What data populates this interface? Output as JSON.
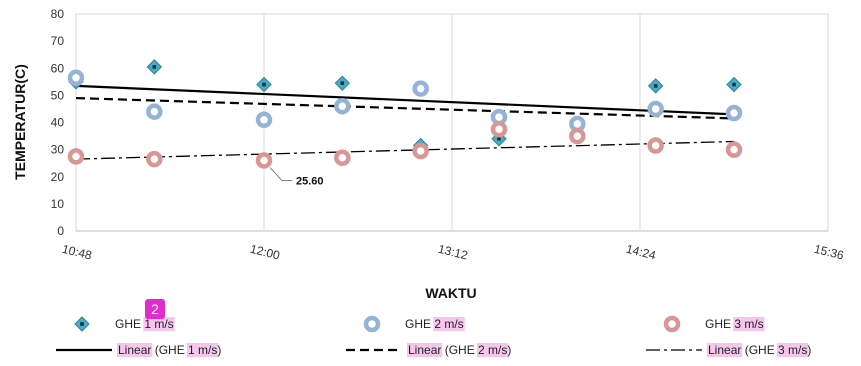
{
  "chart_data": {
    "type": "scatter",
    "xlabel": "WAKTU",
    "ylabel": "TEMPERATUR(C)",
    "ylim": [
      0,
      80
    ],
    "y_ticks": [
      0,
      10,
      20,
      30,
      40,
      50,
      60,
      70,
      80
    ],
    "x_ticks": [
      "10:48",
      "12:00",
      "13:12",
      "14:24",
      "15:36"
    ],
    "xlim": [
      "10:48",
      "15:36"
    ],
    "grid": {
      "vertical": true,
      "horizontal": false
    },
    "legend_position": "bottom",
    "series": [
      {
        "name": "GHE 1 m/s",
        "marker": "diamond",
        "color": "#4bacc6",
        "points": [
          {
            "x": "10:48",
            "y": 55
          },
          {
            "x": "11:18",
            "y": 60.5
          },
          {
            "x": "12:00",
            "y": 54
          },
          {
            "x": "12:30",
            "y": 54.5
          },
          {
            "x": "13:00",
            "y": 31.5
          },
          {
            "x": "13:30",
            "y": 34
          },
          {
            "x": "14:00",
            "y": 39
          },
          {
            "x": "14:30",
            "y": 53.5
          },
          {
            "x": "15:00",
            "y": 54
          }
        ]
      },
      {
        "name": "GHE 2 m/s",
        "marker": "circle",
        "color": "#95b3d7",
        "points": [
          {
            "x": "10:48",
            "y": 56.5
          },
          {
            "x": "11:18",
            "y": 44
          },
          {
            "x": "12:00",
            "y": 41
          },
          {
            "x": "12:30",
            "y": 46
          },
          {
            "x": "13:00",
            "y": 52.5
          },
          {
            "x": "13:30",
            "y": 42
          },
          {
            "x": "14:00",
            "y": 39.5
          },
          {
            "x": "14:30",
            "y": 45
          },
          {
            "x": "15:00",
            "y": 43.5
          }
        ]
      },
      {
        "name": "GHE 3 m/s",
        "marker": "circle",
        "color": "#d99694",
        "points": [
          {
            "x": "10:48",
            "y": 27.5
          },
          {
            "x": "11:18",
            "y": 26.5
          },
          {
            "x": "12:00",
            "y": 26
          },
          {
            "x": "12:30",
            "y": 27
          },
          {
            "x": "13:00",
            "y": 29.5
          },
          {
            "x": "13:30",
            "y": 37.5
          },
          {
            "x": "14:00",
            "y": 35
          },
          {
            "x": "14:30",
            "y": 31.5
          },
          {
            "x": "15:00",
            "y": 30
          }
        ]
      }
    ],
    "trendlines": [
      {
        "name": "Linear (GHE 1 m/s)",
        "style": "solid",
        "from": {
          "x": "10:48",
          "y": 53.5
        },
        "to": {
          "x": "15:00",
          "y": 43
        }
      },
      {
        "name": "Linear (GHE 2 m/s)",
        "style": "dashed",
        "from": {
          "x": "10:48",
          "y": 49
        },
        "to": {
          "x": "15:00",
          "y": 41.5
        }
      },
      {
        "name": "Linear (GHE 3 m/s)",
        "style": "dashdot",
        "from": {
          "x": "10:48",
          "y": 26.5
        },
        "to": {
          "x": "15:00",
          "y": 33
        }
      }
    ],
    "annotations": [
      {
        "text": "25.60",
        "x": "12:00",
        "y": 25.6
      }
    ],
    "legend": {
      "items": [
        {
          "prefix": "GHE ",
          "highlight": "1 m/s",
          "symbol": "diamond",
          "color": "#4bacc6"
        },
        {
          "prefix": "GHE ",
          "highlight": "2 m/s",
          "symbol": "circle",
          "color": "#95b3d7"
        },
        {
          "prefix": "GHE ",
          "highlight": "3 m/s",
          "symbol": "circle",
          "color": "#d99694"
        },
        {
          "linear_label": "Linear",
          "prefix": " (GHE ",
          "highlight": "1 m/s",
          "suffix": ")",
          "style": "solid"
        },
        {
          "linear_label": "Linear",
          "prefix": " (GHE ",
          "highlight": "2 m/s",
          "suffix": ")",
          "style": "dashed"
        },
        {
          "linear_label": "Linear",
          "prefix": " (GHE ",
          "highlight": "3 m/s",
          "suffix": ")",
          "style": "dashdot"
        }
      ]
    }
  },
  "badge": {
    "text": "2"
  }
}
